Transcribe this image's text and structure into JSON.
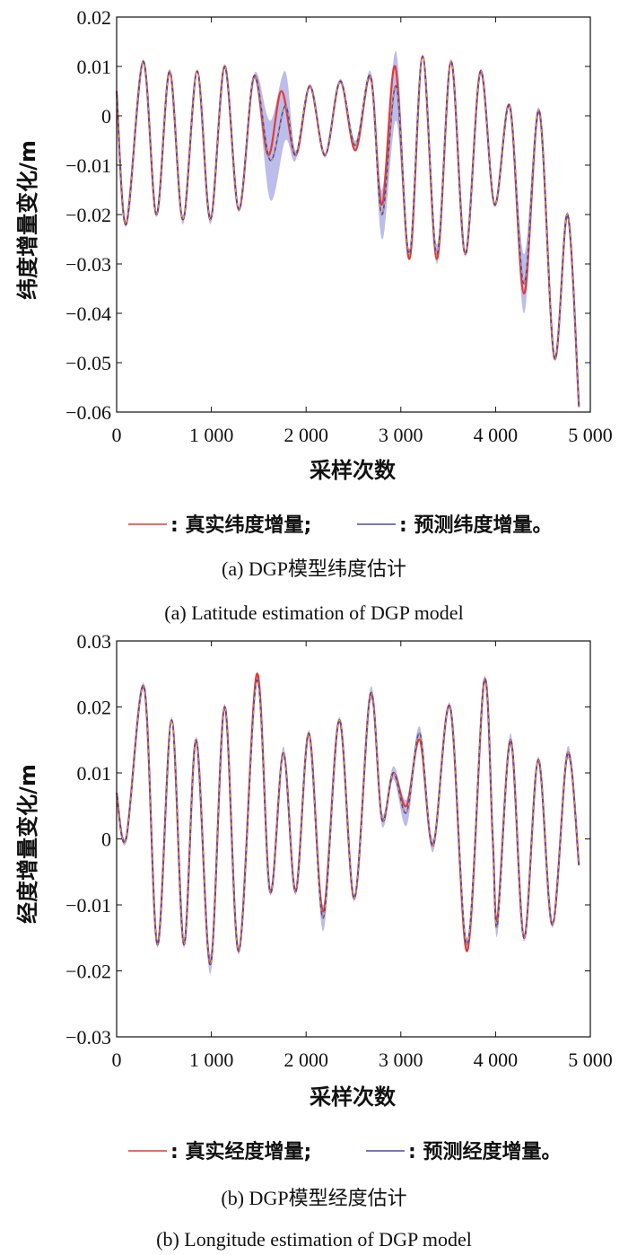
{
  "colors": {
    "true_series": "#e53935",
    "pred_series": "#4a4aa8",
    "pred_mean_dash": "#f0a040",
    "uncertainty_band": "#9a9ae0",
    "axis": "#111111"
  },
  "chart_data": [
    {
      "type": "line",
      "xlabel": "采样次数",
      "ylabel": "纬度增量变化/m",
      "xlim": [
        0,
        5000
      ],
      "ylim": [
        -0.06,
        0.02
      ],
      "xticks": [
        0,
        1000,
        2000,
        3000,
        4000,
        5000
      ],
      "xtick_labels": [
        "0",
        "1 000",
        "2 000",
        "3 000",
        "4 000",
        "5 000"
      ],
      "yticks": [
        -0.06,
        -0.05,
        -0.04,
        -0.03,
        -0.02,
        -0.01,
        0,
        0.01,
        0.02
      ],
      "ytick_labels": [
        "−0.06",
        "−0.05",
        "−0.04",
        "−0.03",
        "−0.02",
        "−0.01",
        "0",
        "0.01",
        "0.02"
      ],
      "grid": false,
      "legend_position": "bottom",
      "series": [
        {
          "name": "真实纬度增量",
          "key": "true",
          "x": [
            0,
            100,
            280,
            420,
            560,
            700,
            850,
            990,
            1140,
            1290,
            1450,
            1600,
            1740,
            1890,
            2040,
            2200,
            2360,
            2520,
            2680,
            2800,
            2940,
            3090,
            3230,
            3380,
            3530,
            3680,
            3840,
            3990,
            4150,
            4300,
            4460,
            4620,
            4760,
            4880
          ],
          "values": [
            0.005,
            -0.022,
            0.011,
            -0.02,
            0.009,
            -0.021,
            0.009,
            -0.021,
            0.01,
            -0.019,
            0.008,
            -0.008,
            0.005,
            -0.008,
            0.006,
            -0.008,
            0.007,
            -0.007,
            0.008,
            -0.018,
            0.01,
            -0.029,
            0.012,
            -0.029,
            0.011,
            -0.028,
            0.009,
            -0.018,
            0.002,
            -0.036,
            0.001,
            -0.049,
            -0.02,
            -0.059
          ]
        },
        {
          "name": "预测纬度增量",
          "key": "pred",
          "x": [
            0,
            100,
            280,
            420,
            560,
            700,
            850,
            990,
            1140,
            1290,
            1450,
            1620,
            1780,
            1890,
            2040,
            2200,
            2360,
            2520,
            2680,
            2800,
            2950,
            3090,
            3230,
            3380,
            3530,
            3680,
            3840,
            3990,
            4150,
            4300,
            4460,
            4620,
            4760,
            4880
          ],
          "values": [
            0.005,
            -0.022,
            0.011,
            -0.02,
            0.009,
            -0.021,
            0.009,
            -0.021,
            0.01,
            -0.019,
            0.008,
            -0.009,
            0.002,
            -0.008,
            0.006,
            -0.008,
            0.007,
            -0.006,
            0.008,
            -0.02,
            0.006,
            -0.028,
            0.012,
            -0.028,
            0.011,
            -0.028,
            0.009,
            -0.018,
            0.002,
            -0.034,
            0.001,
            -0.049,
            -0.02,
            -0.059
          ],
          "band": [
            0.0005,
            0.0005,
            0.0005,
            0.0005,
            0.0005,
            0.001,
            0.0005,
            0.001,
            0.0005,
            0.0005,
            0.0005,
            0.008,
            0.007,
            0.001,
            0.0005,
            0.0005,
            0.0005,
            0.001,
            0.001,
            0.005,
            0.007,
            0.001,
            0.0005,
            0.002,
            0.0005,
            0.0005,
            0.0005,
            0.0005,
            0.0005,
            0.006,
            0.0005,
            0.0005,
            0.0005,
            0.0005
          ]
        }
      ],
      "legend": {
        "true_label": ": 真实纬度增量;",
        "pred_label": ": 预测纬度增量。"
      },
      "caption_zh": "(a) DGP模型纬度估计",
      "caption_en": "(a) Latitude estimation of DGP model"
    },
    {
      "type": "line",
      "xlabel": "采样次数",
      "ylabel": "经度增量变化/m",
      "xlim": [
        0,
        5000
      ],
      "ylim": [
        -0.03,
        0.03
      ],
      "xticks": [
        0,
        1000,
        2000,
        3000,
        4000,
        5000
      ],
      "xtick_labels": [
        "0",
        "1 000",
        "2 000",
        "3 000",
        "4 000",
        "5 000"
      ],
      "yticks": [
        -0.03,
        -0.02,
        -0.01,
        0,
        0.01,
        0.02,
        0.03
      ],
      "ytick_labels": [
        "−0.03",
        "−0.02",
        "−0.01",
        "0",
        "0.01",
        "0.02",
        "0.03"
      ],
      "grid": false,
      "legend_position": "bottom",
      "series": [
        {
          "name": "真实经度增量",
          "key": "true",
          "x": [
            0,
            100,
            290,
            430,
            580,
            710,
            840,
            990,
            1140,
            1290,
            1480,
            1620,
            1760,
            1890,
            2030,
            2180,
            2350,
            2510,
            2680,
            2800,
            2920,
            3060,
            3200,
            3340,
            3520,
            3700,
            3880,
            3970,
            4020,
            4160,
            4300,
            4450,
            4600,
            4760,
            4880
          ],
          "values": [
            0.007,
            0.0,
            0.023,
            -0.016,
            0.018,
            -0.016,
            0.015,
            -0.019,
            0.02,
            -0.017,
            0.025,
            -0.008,
            0.013,
            -0.008,
            0.016,
            -0.011,
            0.018,
            -0.009,
            0.022,
            0.003,
            0.01,
            0.005,
            0.015,
            -0.001,
            0.02,
            -0.017,
            0.024,
            0.0,
            -0.012,
            0.015,
            -0.015,
            0.012,
            -0.013,
            0.013,
            -0.004
          ]
        },
        {
          "name": "预测经度增量",
          "key": "pred",
          "x": [
            0,
            100,
            290,
            430,
            580,
            710,
            840,
            990,
            1140,
            1290,
            1480,
            1620,
            1760,
            1890,
            2030,
            2180,
            2350,
            2510,
            2680,
            2800,
            2920,
            3060,
            3200,
            3340,
            3520,
            3700,
            3880,
            3970,
            4020,
            4160,
            4300,
            4450,
            4600,
            4760,
            4880
          ],
          "values": [
            0.007,
            0.0,
            0.023,
            -0.016,
            0.018,
            -0.016,
            0.015,
            -0.019,
            0.02,
            -0.017,
            0.024,
            -0.008,
            0.013,
            -0.008,
            0.016,
            -0.012,
            0.018,
            -0.009,
            0.022,
            0.003,
            0.01,
            0.004,
            0.016,
            -0.001,
            0.02,
            -0.016,
            0.024,
            0.0,
            -0.013,
            0.015,
            -0.015,
            0.012,
            -0.013,
            0.013,
            -0.004
          ],
          "band": [
            0.0005,
            0.0005,
            0.0005,
            0.0005,
            0.0005,
            0.0005,
            0.0005,
            0.0015,
            0.0005,
            0.0005,
            0.0005,
            0.0005,
            0.001,
            0.0005,
            0.0005,
            0.002,
            0.0005,
            0.0005,
            0.001,
            0.001,
            0.001,
            0.002,
            0.001,
            0.001,
            0.0005,
            0.001,
            0.0005,
            0.0005,
            0.0015,
            0.001,
            0.0005,
            0.0005,
            0.0005,
            0.001,
            0.0005
          ]
        }
      ],
      "legend": {
        "true_label": ": 真实经度增量;",
        "pred_label": ": 预测经度增量。"
      },
      "caption_zh": "(b) DGP模型经度估计",
      "caption_en": "(b) Longitude estimation of DGP model"
    }
  ]
}
